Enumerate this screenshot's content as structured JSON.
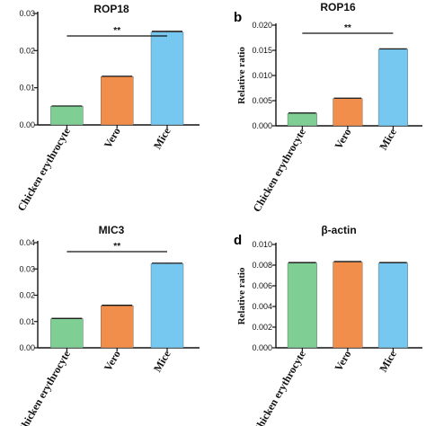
{
  "colors": {
    "chicken": "#7fcf94",
    "vero": "#f28e4c",
    "mice": "#77c8f0"
  },
  "chart_data": [
    {
      "type": "bar",
      "panel_letter": "",
      "title": "ROP18",
      "ylabel": "",
      "categories": [
        "Chicken erythrocyte",
        "Vero",
        "Mice"
      ],
      "values": [
        0.005,
        0.013,
        0.025
      ],
      "errors": [
        0.0001,
        0.0001,
        0.0002
      ],
      "ylim": [
        0,
        0.03
      ],
      "yticks": [
        0.0,
        0.01,
        0.02,
        0.03
      ],
      "ytick_labels": [
        "0.00",
        "0.01",
        "0.02",
        "0.03"
      ],
      "significance": "**"
    },
    {
      "type": "bar",
      "panel_letter": "b",
      "title": "ROP16",
      "ylabel": "Relative ratio",
      "categories": [
        "Chicken erythrocyte",
        "Vero",
        "Mice"
      ],
      "values": [
        0.0025,
        0.0054,
        0.0152
      ],
      "errors": [
        5e-05,
        0.0001,
        0.0001
      ],
      "ylim": [
        0,
        0.02
      ],
      "yticks": [
        0.0,
        0.005,
        0.01,
        0.015,
        0.02
      ],
      "ytick_labels": [
        "0.000",
        "0.005",
        "0.010",
        "0.015",
        "0.020"
      ],
      "significance": "**"
    },
    {
      "type": "bar",
      "panel_letter": "",
      "title": "MIC3",
      "ylabel": "",
      "categories": [
        "Chicken erythrocyte",
        "Vero",
        "Mice"
      ],
      "values": [
        0.011,
        0.016,
        0.032
      ],
      "errors": [
        0.0002,
        0.0002,
        0.0002
      ],
      "ylim": [
        0,
        0.04
      ],
      "yticks": [
        0.0,
        0.01,
        0.02,
        0.03,
        0.04
      ],
      "ytick_labels": [
        "0.00",
        "0.01",
        "0.02",
        "0.03",
        "0.04"
      ],
      "significance": "**"
    },
    {
      "type": "bar",
      "panel_letter": "d",
      "title": "β-actin",
      "ylabel": "Relative ratio",
      "categories": [
        "Chicken erythrocyte",
        "Vero",
        "Mice"
      ],
      "values": [
        0.0082,
        0.0083,
        0.0082
      ],
      "errors": [
        5e-05,
        5e-05,
        5e-05
      ],
      "ylim": [
        0,
        0.01
      ],
      "yticks": [
        0.0,
        0.002,
        0.004,
        0.006,
        0.008,
        0.01
      ],
      "ytick_labels": [
        "0.000",
        "0.002",
        "0.004",
        "0.006",
        "0.008",
        "0.010"
      ],
      "significance": ""
    }
  ]
}
